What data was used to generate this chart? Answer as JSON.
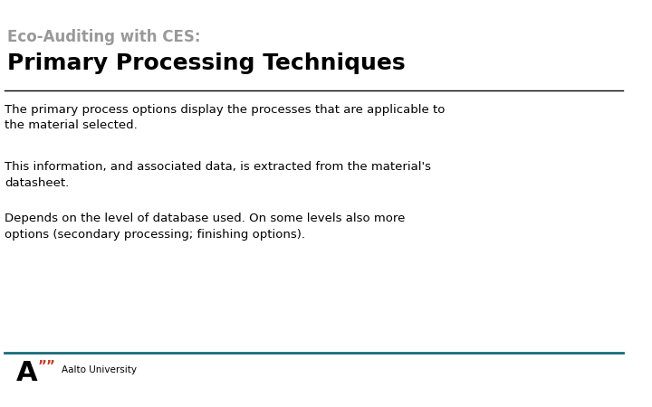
{
  "subtitle": "Eco-Auditing with CES:",
  "title": "Primary Processing Techniques",
  "subtitle_color": "#999999",
  "title_color": "#000000",
  "background_color": "#ffffff",
  "separator_color_top": "#000000",
  "separator_color_bottom": "#1a6b7a",
  "body_paragraphs": [
    "The primary process options display the processes that are applicable to\nthe material selected.",
    "This information, and associated data, is extracted from the material's\ndatasheet.",
    "Depends on the level of database used. On some levels also more\noptions (secondary processing; finishing options)."
  ],
  "body_color": "#000000",
  "body_fontsize": 9.5,
  "subtitle_fontsize": 12,
  "title_fontsize": 18,
  "logo_text_A": "A",
  "logo_text_quotes": "””",
  "logo_label": "Aalto University",
  "logo_A_color": "#000000",
  "logo_quotes_color": "#c0392b",
  "logo_label_color": "#000000"
}
